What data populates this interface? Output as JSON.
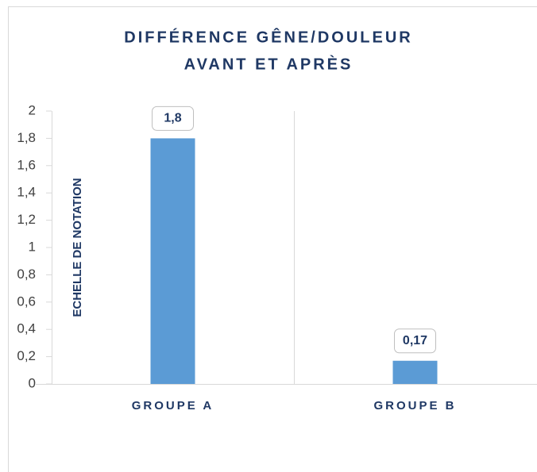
{
  "chart_data": {
    "type": "bar",
    "title": [
      "DIFFÉRENCE GÊNE/DOULEUR",
      "AVANT ET APRÈS"
    ],
    "y_label": "ECHELLE DE NOTATION",
    "categories": [
      "GROUPE A",
      "GROUPE B"
    ],
    "values": [
      1.8,
      0.17
    ],
    "value_labels": [
      "1,8",
      "0,17"
    ],
    "color": "#5b9bd5",
    "ylim": [
      0,
      2
    ],
    "yticks": [
      0,
      {
        "value": 0.2,
        "label": "0,2"
      },
      {
        "value": 0.4,
        "label": "0,4"
      },
      {
        "value": 0.6,
        "label": "0,6"
      },
      {
        "value": 0.8,
        "label": "0,8"
      },
      1,
      {
        "value": 1.2,
        "label": "1,2"
      },
      {
        "value": 1.4,
        "label": "1,4"
      },
      {
        "value": 1.6,
        "label": "1,6"
      },
      {
        "value": 1.8,
        "label": "1,8"
      },
      2
    ]
  }
}
